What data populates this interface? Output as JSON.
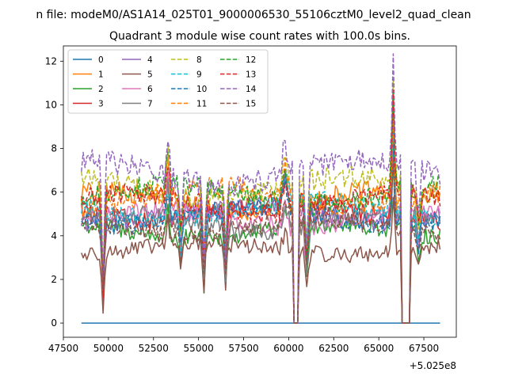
{
  "figure": {
    "suptitle": "n file: modeM0/AS1A14_025T01_9000006530_55106cztM0_level2_quad_clean",
    "title": "Quadrant 3 module wise count rates with 100.0s bins.",
    "offset_label": "+5.025e8"
  },
  "chart_data": {
    "type": "line",
    "title": "Quadrant 3 module wise count rates with 100.0s bins.",
    "xlabel": "",
    "ylabel": "",
    "x_offset": 502500000,
    "xlim": [
      47500,
      69300
    ],
    "ylim": [
      -0.65,
      12.7
    ],
    "xticks": [
      47500,
      50000,
      52500,
      55000,
      57500,
      60000,
      62500,
      65000,
      67500
    ],
    "yticks": [
      0,
      2,
      4,
      6,
      8,
      10,
      12
    ],
    "x_start": 48500,
    "x_end": 68400,
    "bin_seconds": 100,
    "gaps": [
      [
        60300,
        60500
      ],
      [
        66300,
        66700
      ]
    ],
    "grid": false,
    "legend": {
      "placement": "top-left",
      "columns": 4
    },
    "series": [
      {
        "name": "0",
        "color": "#1f77b4",
        "dash": false,
        "level": 0.0
      },
      {
        "name": "1",
        "color": "#ff7f0e",
        "dash": false,
        "level": 5.6
      },
      {
        "name": "2",
        "color": "#2ca02c",
        "dash": false,
        "level": 4.2
      },
      {
        "name": "3",
        "color": "#d62728",
        "dash": false,
        "level": 5.1
      },
      {
        "name": "4",
        "color": "#9467bd",
        "dash": false,
        "level": 5.0
      },
      {
        "name": "5",
        "color": "#8c564b",
        "dash": false,
        "level": 3.4
      },
      {
        "name": "6",
        "color": "#e377c2",
        "dash": false,
        "level": 4.8
      },
      {
        "name": "7",
        "color": "#7f7f7f",
        "dash": false,
        "level": 4.6
      },
      {
        "name": "8",
        "color": "#bcbd22",
        "dash": true,
        "level": 6.2
      },
      {
        "name": "9",
        "color": "#17becf",
        "dash": true,
        "level": 5.2
      },
      {
        "name": "10",
        "color": "#1f77b4",
        "dash": true,
        "level": 4.9
      },
      {
        "name": "11",
        "color": "#ff7f0e",
        "dash": true,
        "level": 5.8
      },
      {
        "name": "12",
        "color": "#2ca02c",
        "dash": true,
        "level": 5.9
      },
      {
        "name": "13",
        "color": "#d62728",
        "dash": true,
        "level": 5.5
      },
      {
        "name": "14",
        "color": "#9467bd",
        "dash": true,
        "level": 6.9
      },
      {
        "name": "15",
        "color": "#8c564b",
        "dash": true,
        "level": 4.4
      }
    ],
    "features": [
      {
        "x": 49700,
        "factor": 0.25,
        "width": 150
      },
      {
        "x": 53300,
        "factor": 1.3,
        "width": 200
      },
      {
        "x": 54000,
        "factor": 0.7,
        "width": 150
      },
      {
        "x": 55300,
        "factor": 0.45,
        "width": 150
      },
      {
        "x": 56500,
        "factor": 0.5,
        "width": 150
      },
      {
        "x": 59800,
        "factor": 1.25,
        "width": 300
      },
      {
        "x": 61000,
        "factor": 0.55,
        "width": 200
      },
      {
        "x": 65800,
        "factor": 1.75,
        "width": 150
      },
      {
        "x": 67200,
        "factor": 0.75,
        "width": 200
      }
    ]
  }
}
